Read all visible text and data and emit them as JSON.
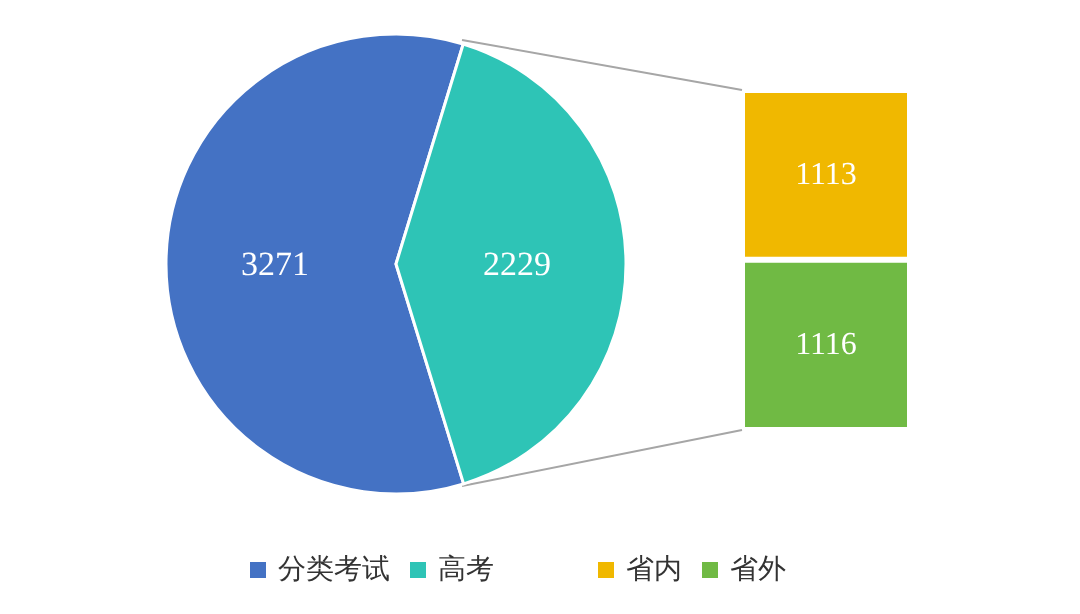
{
  "chart_data": [
    {
      "type": "pie",
      "categories": [
        "分类考试",
        "高考"
      ],
      "values": [
        3271,
        2229
      ],
      "colors": [
        "#4472c4",
        "#2ec4b6"
      ],
      "data_labels": true,
      "legend": "bottom"
    },
    {
      "type": "bar",
      "categories": [
        null
      ],
      "stacked": true,
      "data_labels": true,
      "legend": "bottom",
      "series": [
        {
          "name": "省外",
          "color": "#70ba44",
          "values": [
            1116
          ]
        },
        {
          "name": "省内",
          "color": "#f0b800",
          "values": [
            1113
          ]
        }
      ]
    }
  ]
}
